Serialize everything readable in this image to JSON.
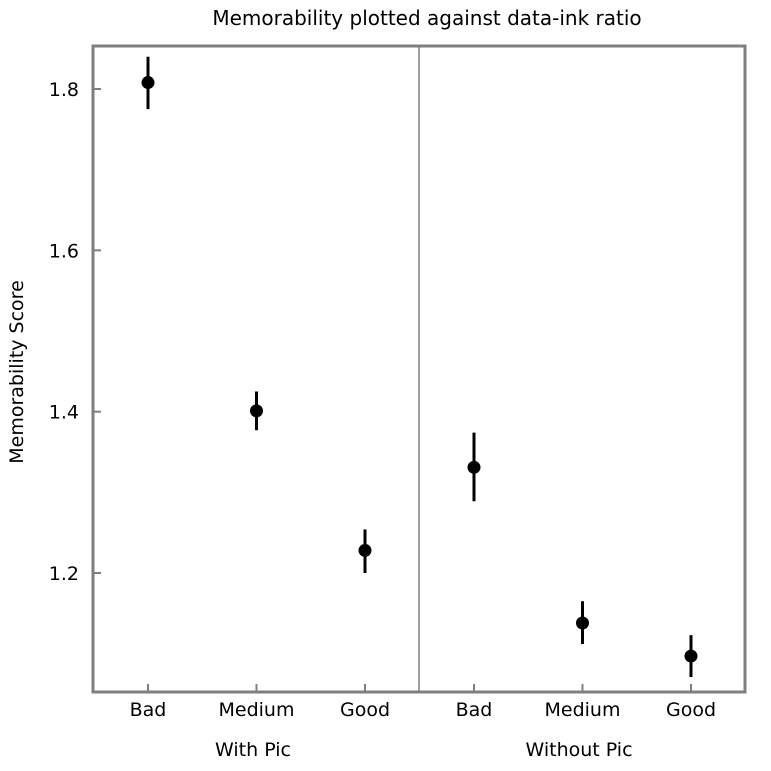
{
  "chart_data": {
    "type": "scatter",
    "title": "Memorability plotted against data-ink ratio",
    "ylabel": "Memorability Score",
    "ylim": [
      1.06,
      1.86
    ],
    "yticks": [
      1.2,
      1.4,
      1.6,
      1.8
    ],
    "ytick_labels": [
      "1.2",
      "1.4",
      "1.6",
      "1.8"
    ],
    "error_bars": true,
    "panels": [
      {
        "name": "With Pic",
        "categories": [
          "Bad",
          "Medium",
          "Good"
        ],
        "values": [
          1.808,
          1.401,
          1.228
        ],
        "lower": [
          1.775,
          1.377,
          1.2
        ],
        "upper": [
          1.84,
          1.425,
          1.254
        ]
      },
      {
        "name": "Without Pic",
        "categories": [
          "Bad",
          "Medium",
          "Good"
        ],
        "values": [
          1.331,
          1.138,
          1.097
        ],
        "lower": [
          1.289,
          1.112,
          1.071
        ],
        "upper": [
          1.374,
          1.165,
          1.123
        ]
      }
    ],
    "colors": {
      "point": "#000000",
      "frame": "#7f7f7f"
    }
  }
}
